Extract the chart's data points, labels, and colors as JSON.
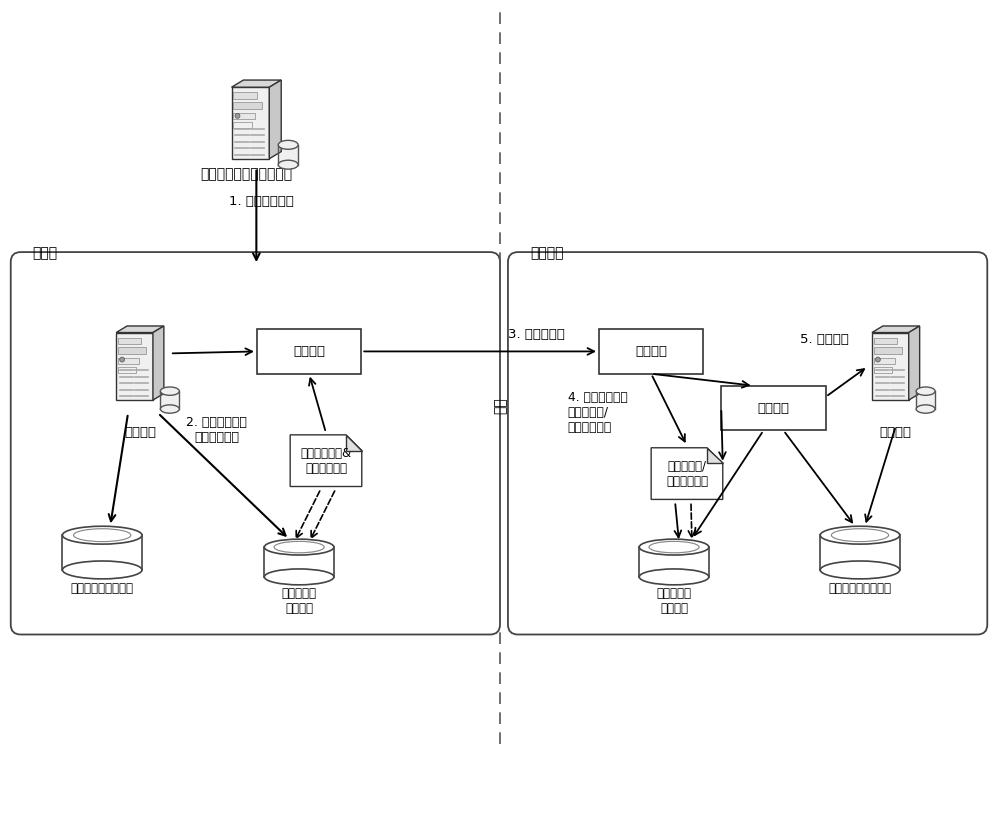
{
  "bg_color": "#ffffff",
  "app_server_label": "应用服务器（业务系统）",
  "step1_label": "1. 应用事务提交",
  "main_site_label": "主站点",
  "backup_site_label": "备用站点",
  "main_db_label": "主数据库",
  "backup_db_label": "备数据库",
  "transfer_proc_label": "传输进程",
  "receive_proc_label": "接收进程",
  "apply_proc_label": "应用进程",
  "step2_label": "2. 将数据变化记\n录于日志文件",
  "step3_label": "3. 日志流传输",
  "step4_label": "4. 将日志流写入\n备日志文件/\n归档日志文件",
  "step5_label": "5. 日志应用",
  "network_label": "网络",
  "online_log_label": "联机日志文件&\n归档日志文件",
  "backup_log_label": "备日志文件/\n归档日志文件",
  "data_disk_main_label": "存放数据文件的磁盘",
  "log_disk_main_label": "存放日志文\n件的磁盘",
  "log_disk_backup_label": "存放日志文\n件的磁盘",
  "data_disk_backup_label": "存放数据文件的磁盘"
}
